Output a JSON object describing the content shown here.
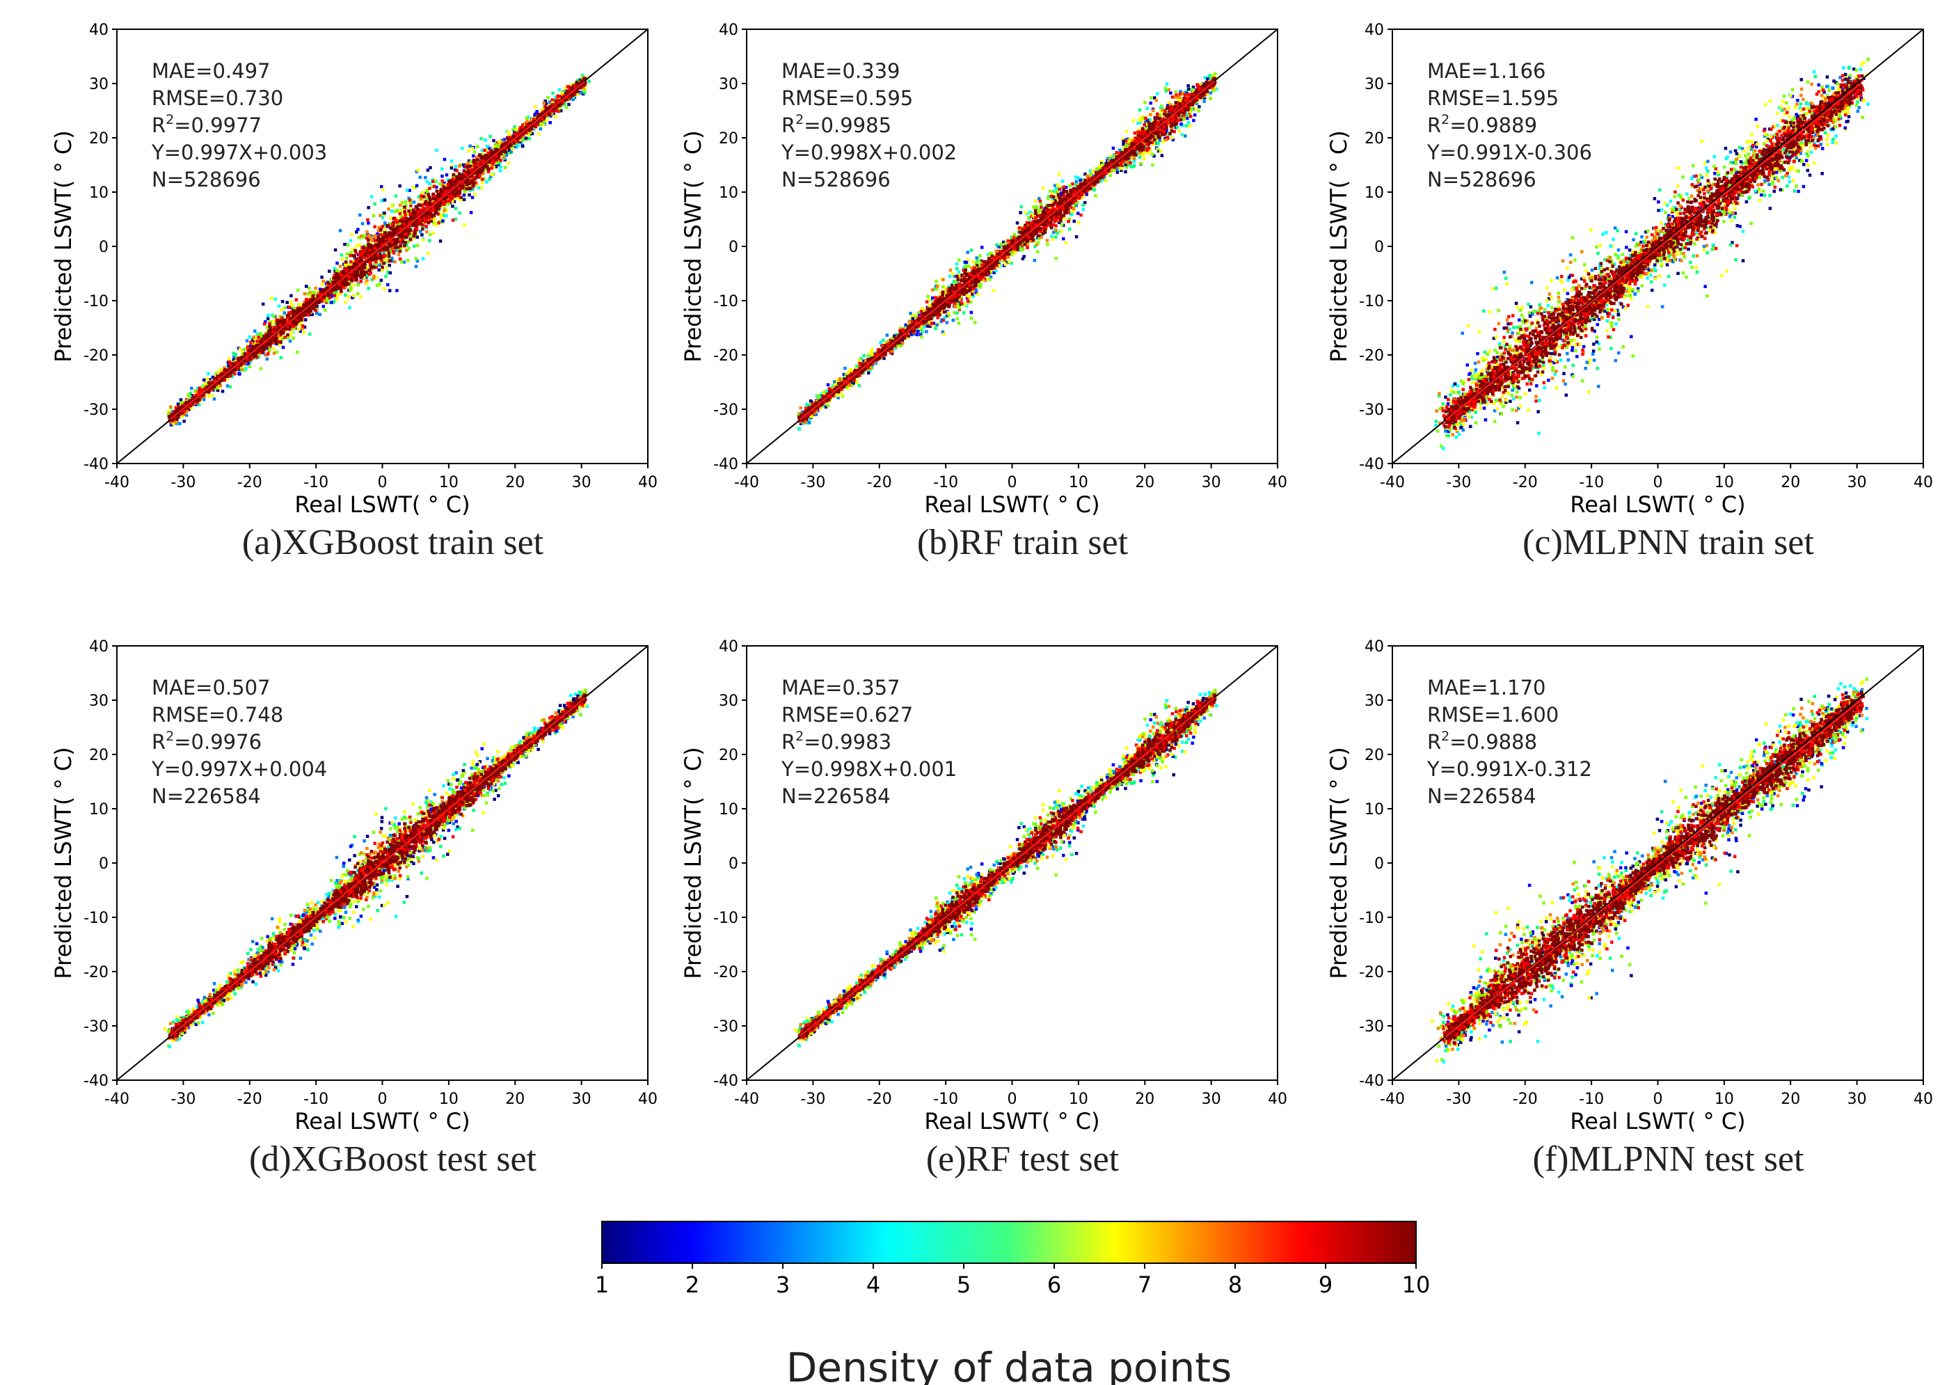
{
  "figure": {
    "xlabel": "Real LSWT( ° C)",
    "ylabel": "Predicted LSWT( ° C)"
  },
  "colors": {
    "frame": "#000000",
    "identity_line": "#000000",
    "fit_line": "#ff2020",
    "text": "#222222"
  },
  "chart_data": [
    {
      "type": "scatter",
      "density": true,
      "title": "(a)XGBoost train set",
      "xlabel": "Real LSWT( ° C)",
      "ylabel": "Predicted LSWT( ° C)",
      "xlim": [
        -40,
        40
      ],
      "ylim": [
        -40,
        40
      ],
      "xticks": [
        -40,
        -30,
        -20,
        -10,
        0,
        10,
        20,
        30,
        40
      ],
      "yticks": [
        -40,
        -30,
        -20,
        -10,
        0,
        10,
        20,
        30,
        40
      ],
      "stats": {
        "MAE": "MAE=0.497",
        "RMSE": "RMSE=0.730",
        "R2_prefix": "R",
        "R2_sup": "2",
        "R2_value": "=0.9977",
        "fit": "Y=0.997X+0.003",
        "N": "N=528696"
      },
      "fit": {
        "slope": 0.997,
        "intercept": 0.003
      },
      "range": [
        -32,
        30.5
      ],
      "spread": 1.0,
      "bulges": [
        [
          -2,
          3
        ],
        [
          5,
          2.5
        ],
        [
          13,
          2
        ],
        [
          -15,
          1.5
        ]
      ]
    },
    {
      "type": "scatter",
      "density": true,
      "title": "(b)RF train set",
      "xlabel": "Real LSWT( ° C)",
      "ylabel": "Predicted LSWT( ° C)",
      "xlim": [
        -40,
        40
      ],
      "ylim": [
        -40,
        40
      ],
      "xticks": [
        -40,
        -30,
        -20,
        -10,
        0,
        10,
        20,
        30,
        40
      ],
      "yticks": [
        -40,
        -30,
        -20,
        -10,
        0,
        10,
        20,
        30,
        40
      ],
      "stats": {
        "MAE": "MAE=0.339",
        "RMSE": "RMSE=0.595",
        "R2_prefix": "R",
        "R2_sup": "2",
        "R2_value": "=0.9985",
        "fit": "Y=0.998X+0.002",
        "N": "N=528696"
      },
      "fit": {
        "slope": 0.998,
        "intercept": 0.002
      },
      "range": [
        -32,
        30.5
      ],
      "spread": 0.9,
      "bulges": [
        [
          -8,
          2
        ],
        [
          6,
          2.5
        ],
        [
          22,
          2.5
        ]
      ]
    },
    {
      "type": "scatter",
      "density": true,
      "title": "(c)MLPNN train set",
      "xlabel": "Real LSWT( ° C)",
      "ylabel": "Predicted LSWT( ° C)",
      "xlim": [
        -40,
        40
      ],
      "ylim": [
        -40,
        40
      ],
      "xticks": [
        -40,
        -30,
        -20,
        -10,
        0,
        10,
        20,
        30,
        40
      ],
      "yticks": [
        -40,
        -30,
        -20,
        -10,
        0,
        10,
        20,
        30,
        40
      ],
      "stats": {
        "MAE": "MAE=1.166",
        "RMSE": "RMSE=1.595",
        "R2_prefix": "R",
        "R2_sup": "2",
        "R2_value": "=0.9889",
        "fit": "Y=0.991X-0.306",
        "N": "N=528696"
      },
      "fit": {
        "slope": 0.991,
        "intercept": -0.306
      },
      "range": [
        -32,
        30.5
      ],
      "spread": 2.6,
      "bulges": [
        [
          -20,
          5
        ],
        [
          -10,
          4
        ],
        [
          7,
          4
        ],
        [
          20,
          3
        ]
      ]
    },
    {
      "type": "scatter",
      "density": true,
      "title": "(d)XGBoost test set",
      "xlabel": "Real LSWT( ° C)",
      "ylabel": "Predicted LSWT( ° C)",
      "xlim": [
        -40,
        40
      ],
      "ylim": [
        -40,
        40
      ],
      "xticks": [
        -40,
        -30,
        -20,
        -10,
        0,
        10,
        20,
        30,
        40
      ],
      "yticks": [
        -40,
        -30,
        -20,
        -10,
        0,
        10,
        20,
        30,
        40
      ],
      "stats": {
        "MAE": "MAE=0.507",
        "RMSE": "RMSE=0.748",
        "R2_prefix": "R",
        "R2_sup": "2",
        "R2_value": "=0.9976",
        "fit": "Y=0.997X+0.004",
        "N": "N=226584"
      },
      "fit": {
        "slope": 0.997,
        "intercept": 0.004
      },
      "range": [
        -32,
        30.5
      ],
      "spread": 1.0,
      "bulges": [
        [
          -2,
          3
        ],
        [
          5,
          2.5
        ],
        [
          13,
          2
        ],
        [
          -15,
          1.5
        ]
      ]
    },
    {
      "type": "scatter",
      "density": true,
      "title": "(e)RF test set",
      "xlabel": "Real LSWT( ° C)",
      "ylabel": "Predicted LSWT( ° C)",
      "xlim": [
        -40,
        40
      ],
      "ylim": [
        -40,
        40
      ],
      "xticks": [
        -40,
        -30,
        -20,
        -10,
        0,
        10,
        20,
        30,
        40
      ],
      "yticks": [
        -40,
        -30,
        -20,
        -10,
        0,
        10,
        20,
        30,
        40
      ],
      "stats": {
        "MAE": "MAE=0.357",
        "RMSE": "RMSE=0.627",
        "R2_prefix": "R",
        "R2_sup": "2",
        "R2_value": "=0.9983",
        "fit": "Y=0.998X+0.001",
        "N": "N=226584"
      },
      "fit": {
        "slope": 0.998,
        "intercept": 0.001
      },
      "range": [
        -32,
        30.5
      ],
      "spread": 0.9,
      "bulges": [
        [
          -8,
          2
        ],
        [
          6,
          2.5
        ],
        [
          22,
          2.5
        ]
      ]
    },
    {
      "type": "scatter",
      "density": true,
      "title": "(f)MLPNN test set",
      "xlabel": "Real LSWT( ° C)",
      "ylabel": "Predicted LSWT( ° C)",
      "xlim": [
        -40,
        40
      ],
      "ylim": [
        -40,
        40
      ],
      "xticks": [
        -40,
        -30,
        -20,
        -10,
        0,
        10,
        20,
        30,
        40
      ],
      "yticks": [
        -40,
        -30,
        -20,
        -10,
        0,
        10,
        20,
        30,
        40
      ],
      "stats": {
        "MAE": "MAE=1.170",
        "RMSE": "RMSE=1.600",
        "R2_prefix": "R",
        "R2_sup": "2",
        "R2_value": "=0.9888",
        "fit": "Y=0.991X-0.312",
        "N": "N=226584"
      },
      "fit": {
        "slope": 0.991,
        "intercept": -0.312
      },
      "range": [
        -32,
        30.5
      ],
      "spread": 2.3,
      "bulges": [
        [
          -20,
          4.5
        ],
        [
          -10,
          3.5
        ],
        [
          7,
          3.5
        ],
        [
          20,
          3
        ]
      ]
    }
  ],
  "colorbar": {
    "title": "Density of data points",
    "min": 1,
    "max": 10,
    "ticks": [
      "1",
      "2",
      "3",
      "4",
      "5",
      "6",
      "7",
      "8",
      "9",
      "10"
    ],
    "colormap": [
      "#00007f",
      "#0000ff",
      "#0080ff",
      "#00ffff",
      "#00ff80",
      "#80ff00",
      "#ffff00",
      "#ff8000",
      "#ff0000",
      "#7f0000"
    ]
  }
}
